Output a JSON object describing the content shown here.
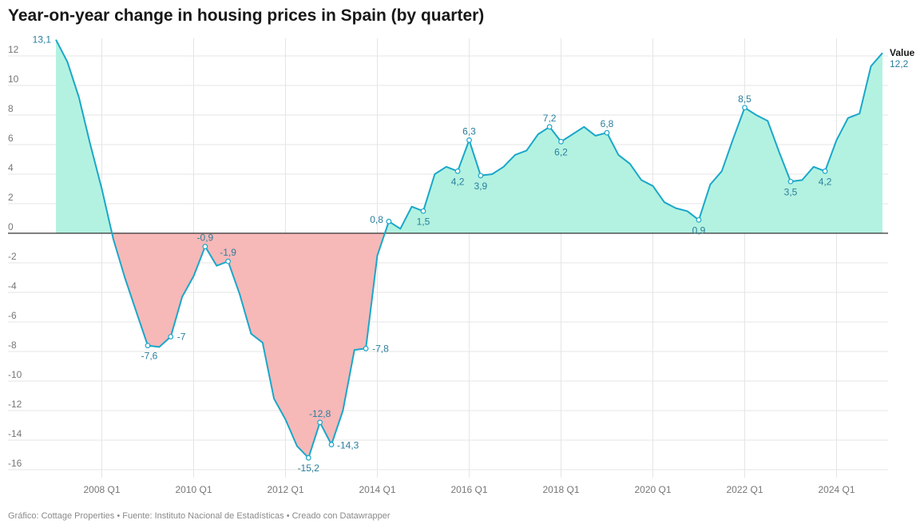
{
  "page": {
    "title": "Year-on-year change in housing prices in Spain (by quarter)",
    "footer": "Gráfico: Cottage Properties • Fuente: Instituto Nacional de Estadísticas • Creado con Datawrapper"
  },
  "colors": {
    "line": "#1aa7c9",
    "positive_fill": "#b3f2e1",
    "negative_fill": "#f7b8b8",
    "grid": "#e5e5e5",
    "zero_line": "#333333",
    "tick_text": "#777777",
    "label_text": "#2a7f9c"
  },
  "chart_data": {
    "type": "area",
    "title": "Year-on-year change in housing prices in Spain (by quarter)",
    "xlabel": "",
    "ylabel": "",
    "ylim": [
      -16,
      12
    ],
    "yticks": [
      12,
      10,
      8,
      6,
      4,
      2,
      0,
      -2,
      -4,
      -6,
      -8,
      -10,
      -12,
      -14,
      -16
    ],
    "ytick_labels": [
      "12",
      "10",
      "8",
      "6",
      "4",
      "2",
      "0",
      "-2",
      "-4",
      "-6",
      "-8",
      "-10",
      "-12",
      "-14",
      "-16"
    ],
    "xticks": [
      "2008 Q1",
      "2010 Q1",
      "2012 Q1",
      "2014 Q1",
      "2016 Q1",
      "2018 Q1",
      "2020 Q1",
      "2022 Q1",
      "2024 Q1"
    ],
    "grid": true,
    "series": [
      {
        "name": "Value",
        "x": [
          "2007 Q1",
          "2007 Q2",
          "2007 Q3",
          "2007 Q4",
          "2008 Q1",
          "2008 Q2",
          "2008 Q3",
          "2008 Q4",
          "2009 Q1",
          "2009 Q2",
          "2009 Q3",
          "2009 Q4",
          "2010 Q1",
          "2010 Q2",
          "2010 Q3",
          "2010 Q4",
          "2011 Q1",
          "2011 Q2",
          "2011 Q3",
          "2011 Q4",
          "2012 Q1",
          "2012 Q2",
          "2012 Q3",
          "2012 Q4",
          "2013 Q1",
          "2013 Q2",
          "2013 Q3",
          "2013 Q4",
          "2014 Q1",
          "2014 Q2",
          "2014 Q3",
          "2014 Q4",
          "2015 Q1",
          "2015 Q2",
          "2015 Q3",
          "2015 Q4",
          "2016 Q1",
          "2016 Q2",
          "2016 Q3",
          "2016 Q4",
          "2017 Q1",
          "2017 Q2",
          "2017 Q3",
          "2017 Q4",
          "2018 Q1",
          "2018 Q2",
          "2018 Q3",
          "2018 Q4",
          "2019 Q1",
          "2019 Q2",
          "2019 Q3",
          "2019 Q4",
          "2020 Q1",
          "2020 Q2",
          "2020 Q3",
          "2020 Q4",
          "2021 Q1",
          "2021 Q2",
          "2021 Q3",
          "2021 Q4",
          "2022 Q1",
          "2022 Q2",
          "2022 Q3",
          "2022 Q4",
          "2023 Q1",
          "2023 Q2",
          "2023 Q3",
          "2023 Q4",
          "2024 Q1",
          "2024 Q2",
          "2024 Q3",
          "2024 Q4",
          "2025 Q1"
        ],
        "values": [
          13.1,
          11.6,
          9.2,
          6.0,
          3.0,
          -0.4,
          -3.0,
          -5.3,
          -7.6,
          -7.7,
          -7.0,
          -4.3,
          -2.9,
          -0.9,
          -2.2,
          -1.9,
          -4.1,
          -6.8,
          -7.4,
          -11.2,
          -12.6,
          -14.4,
          -15.2,
          -12.8,
          -14.3,
          -12.0,
          -7.9,
          -7.8,
          -1.5,
          0.8,
          0.3,
          1.8,
          1.5,
          4.0,
          4.5,
          4.2,
          6.3,
          3.9,
          4.0,
          4.5,
          5.3,
          5.6,
          6.7,
          7.2,
          6.2,
          6.7,
          7.2,
          6.6,
          6.8,
          5.3,
          4.7,
          3.6,
          3.2,
          2.1,
          1.7,
          1.5,
          0.9,
          3.3,
          4.2,
          6.4,
          8.5,
          8.0,
          7.6,
          5.5,
          3.5,
          3.6,
          4.5,
          4.2,
          6.3,
          7.8,
          8.1,
          11.3,
          12.2
        ]
      }
    ],
    "point_labels": [
      {
        "x": "2007 Q1",
        "text": "13,1"
      },
      {
        "x": "2009 Q1",
        "text": "-7,6"
      },
      {
        "x": "2009 Q3",
        "text": "-7"
      },
      {
        "x": "2010 Q2",
        "text": "-0,9"
      },
      {
        "x": "2010 Q4",
        "text": "-1,9"
      },
      {
        "x": "2012 Q3",
        "text": "-15,2"
      },
      {
        "x": "2012 Q4",
        "text": "-12,8"
      },
      {
        "x": "2013 Q1",
        "text": "-14,3"
      },
      {
        "x": "2013 Q4",
        "text": "-7,8"
      },
      {
        "x": "2014 Q2",
        "text": "0,8"
      },
      {
        "x": "2015 Q1",
        "text": "1,5"
      },
      {
        "x": "2015 Q4",
        "text": "4,2"
      },
      {
        "x": "2016 Q1",
        "text": "6,3"
      },
      {
        "x": "2016 Q2",
        "text": "3,9"
      },
      {
        "x": "2017 Q4",
        "text": "7,2"
      },
      {
        "x": "2018 Q1",
        "text": "6,2"
      },
      {
        "x": "2019 Q1",
        "text": "6,8"
      },
      {
        "x": "2021 Q1",
        "text": "0,9"
      },
      {
        "x": "2022 Q1",
        "text": "8,5"
      },
      {
        "x": "2023 Q1",
        "text": "3,5"
      },
      {
        "x": "2023 Q4",
        "text": "4,2"
      }
    ],
    "end_label": {
      "name": "Value",
      "text": "12,2"
    }
  }
}
